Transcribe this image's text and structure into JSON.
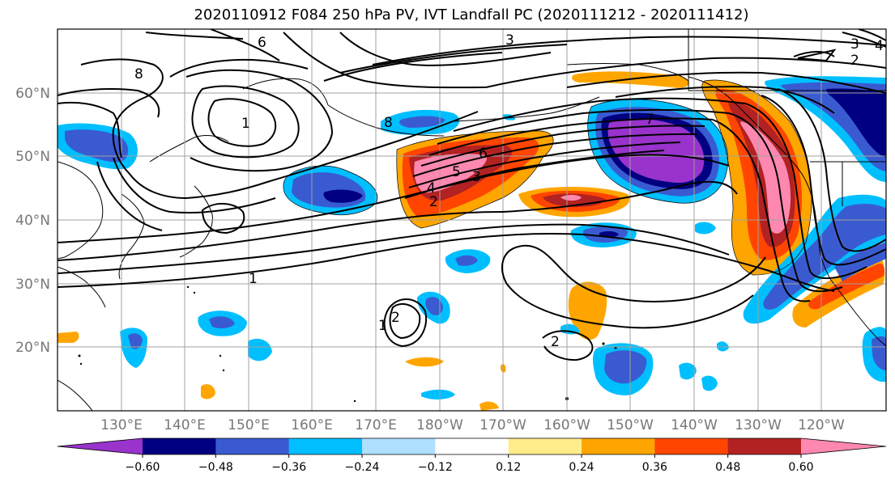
{
  "title": "2020110912 F084 250 hPa PV, IVT Landfall PC (2020111212 - 2020111412)",
  "map": {
    "lat_labels": [
      "60°N",
      "50°N",
      "40°N",
      "30°N",
      "20°N"
    ],
    "lon_labels": [
      "130°E",
      "140°E",
      "150°E",
      "160°E",
      "170°E",
      "180°W",
      "170°W",
      "160°W",
      "150°W",
      "140°W",
      "130°W",
      "120°W"
    ],
    "contour_labels": [
      "6",
      "3",
      "3",
      "2",
      "4",
      "8",
      "1",
      "8",
      "7",
      "6",
      "5",
      "4",
      "3",
      "2",
      "1",
      "1",
      "2",
      "2"
    ]
  },
  "colorbar": {
    "colors": [
      "#9933cc",
      "#000080",
      "#3a5bd0",
      "#00bfff",
      "#b0e0ff",
      "#ffffff",
      "#ffec8b",
      "#ffa500",
      "#ff4500",
      "#b22222",
      "#ff88b0"
    ],
    "tick_labels": [
      "−0.60",
      "−0.48",
      "−0.36",
      "−0.24",
      "−0.12",
      "0.12",
      "0.24",
      "0.36",
      "0.48",
      "0.60"
    ]
  },
  "colors": {
    "grid": "#a0a0a0",
    "contour": "#000000"
  }
}
